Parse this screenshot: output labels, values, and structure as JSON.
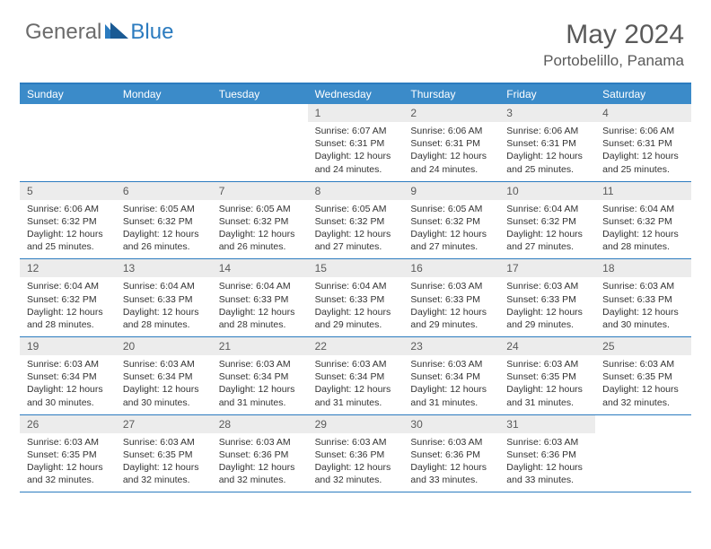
{
  "logo": {
    "general": "General",
    "blue": "Blue"
  },
  "title": "May 2024",
  "location": "Portobelillo, Panama",
  "colors": {
    "header_bg": "#3b8bc9",
    "accent": "#2b7bbf",
    "daynum_bg": "#ececec",
    "text_gray": "#5a5a5a",
    "body_text": "#333333"
  },
  "day_headers": [
    "Sunday",
    "Monday",
    "Tuesday",
    "Wednesday",
    "Thursday",
    "Friday",
    "Saturday"
  ],
  "weeks": [
    [
      {
        "n": "",
        "lines": []
      },
      {
        "n": "",
        "lines": []
      },
      {
        "n": "",
        "lines": []
      },
      {
        "n": "1",
        "lines": [
          "Sunrise: 6:07 AM",
          "Sunset: 6:31 PM",
          "Daylight: 12 hours",
          "and 24 minutes."
        ]
      },
      {
        "n": "2",
        "lines": [
          "Sunrise: 6:06 AM",
          "Sunset: 6:31 PM",
          "Daylight: 12 hours",
          "and 24 minutes."
        ]
      },
      {
        "n": "3",
        "lines": [
          "Sunrise: 6:06 AM",
          "Sunset: 6:31 PM",
          "Daylight: 12 hours",
          "and 25 minutes."
        ]
      },
      {
        "n": "4",
        "lines": [
          "Sunrise: 6:06 AM",
          "Sunset: 6:31 PM",
          "Daylight: 12 hours",
          "and 25 minutes."
        ]
      }
    ],
    [
      {
        "n": "5",
        "lines": [
          "Sunrise: 6:06 AM",
          "Sunset: 6:32 PM",
          "Daylight: 12 hours",
          "and 25 minutes."
        ]
      },
      {
        "n": "6",
        "lines": [
          "Sunrise: 6:05 AM",
          "Sunset: 6:32 PM",
          "Daylight: 12 hours",
          "and 26 minutes."
        ]
      },
      {
        "n": "7",
        "lines": [
          "Sunrise: 6:05 AM",
          "Sunset: 6:32 PM",
          "Daylight: 12 hours",
          "and 26 minutes."
        ]
      },
      {
        "n": "8",
        "lines": [
          "Sunrise: 6:05 AM",
          "Sunset: 6:32 PM",
          "Daylight: 12 hours",
          "and 27 minutes."
        ]
      },
      {
        "n": "9",
        "lines": [
          "Sunrise: 6:05 AM",
          "Sunset: 6:32 PM",
          "Daylight: 12 hours",
          "and 27 minutes."
        ]
      },
      {
        "n": "10",
        "lines": [
          "Sunrise: 6:04 AM",
          "Sunset: 6:32 PM",
          "Daylight: 12 hours",
          "and 27 minutes."
        ]
      },
      {
        "n": "11",
        "lines": [
          "Sunrise: 6:04 AM",
          "Sunset: 6:32 PM",
          "Daylight: 12 hours",
          "and 28 minutes."
        ]
      }
    ],
    [
      {
        "n": "12",
        "lines": [
          "Sunrise: 6:04 AM",
          "Sunset: 6:32 PM",
          "Daylight: 12 hours",
          "and 28 minutes."
        ]
      },
      {
        "n": "13",
        "lines": [
          "Sunrise: 6:04 AM",
          "Sunset: 6:33 PM",
          "Daylight: 12 hours",
          "and 28 minutes."
        ]
      },
      {
        "n": "14",
        "lines": [
          "Sunrise: 6:04 AM",
          "Sunset: 6:33 PM",
          "Daylight: 12 hours",
          "and 28 minutes."
        ]
      },
      {
        "n": "15",
        "lines": [
          "Sunrise: 6:04 AM",
          "Sunset: 6:33 PM",
          "Daylight: 12 hours",
          "and 29 minutes."
        ]
      },
      {
        "n": "16",
        "lines": [
          "Sunrise: 6:03 AM",
          "Sunset: 6:33 PM",
          "Daylight: 12 hours",
          "and 29 minutes."
        ]
      },
      {
        "n": "17",
        "lines": [
          "Sunrise: 6:03 AM",
          "Sunset: 6:33 PM",
          "Daylight: 12 hours",
          "and 29 minutes."
        ]
      },
      {
        "n": "18",
        "lines": [
          "Sunrise: 6:03 AM",
          "Sunset: 6:33 PM",
          "Daylight: 12 hours",
          "and 30 minutes."
        ]
      }
    ],
    [
      {
        "n": "19",
        "lines": [
          "Sunrise: 6:03 AM",
          "Sunset: 6:34 PM",
          "Daylight: 12 hours",
          "and 30 minutes."
        ]
      },
      {
        "n": "20",
        "lines": [
          "Sunrise: 6:03 AM",
          "Sunset: 6:34 PM",
          "Daylight: 12 hours",
          "and 30 minutes."
        ]
      },
      {
        "n": "21",
        "lines": [
          "Sunrise: 6:03 AM",
          "Sunset: 6:34 PM",
          "Daylight: 12 hours",
          "and 31 minutes."
        ]
      },
      {
        "n": "22",
        "lines": [
          "Sunrise: 6:03 AM",
          "Sunset: 6:34 PM",
          "Daylight: 12 hours",
          "and 31 minutes."
        ]
      },
      {
        "n": "23",
        "lines": [
          "Sunrise: 6:03 AM",
          "Sunset: 6:34 PM",
          "Daylight: 12 hours",
          "and 31 minutes."
        ]
      },
      {
        "n": "24",
        "lines": [
          "Sunrise: 6:03 AM",
          "Sunset: 6:35 PM",
          "Daylight: 12 hours",
          "and 31 minutes."
        ]
      },
      {
        "n": "25",
        "lines": [
          "Sunrise: 6:03 AM",
          "Sunset: 6:35 PM",
          "Daylight: 12 hours",
          "and 32 minutes."
        ]
      }
    ],
    [
      {
        "n": "26",
        "lines": [
          "Sunrise: 6:03 AM",
          "Sunset: 6:35 PM",
          "Daylight: 12 hours",
          "and 32 minutes."
        ]
      },
      {
        "n": "27",
        "lines": [
          "Sunrise: 6:03 AM",
          "Sunset: 6:35 PM",
          "Daylight: 12 hours",
          "and 32 minutes."
        ]
      },
      {
        "n": "28",
        "lines": [
          "Sunrise: 6:03 AM",
          "Sunset: 6:36 PM",
          "Daylight: 12 hours",
          "and 32 minutes."
        ]
      },
      {
        "n": "29",
        "lines": [
          "Sunrise: 6:03 AM",
          "Sunset: 6:36 PM",
          "Daylight: 12 hours",
          "and 32 minutes."
        ]
      },
      {
        "n": "30",
        "lines": [
          "Sunrise: 6:03 AM",
          "Sunset: 6:36 PM",
          "Daylight: 12 hours",
          "and 33 minutes."
        ]
      },
      {
        "n": "31",
        "lines": [
          "Sunrise: 6:03 AM",
          "Sunset: 6:36 PM",
          "Daylight: 12 hours",
          "and 33 minutes."
        ]
      },
      {
        "n": "",
        "lines": []
      }
    ]
  ]
}
